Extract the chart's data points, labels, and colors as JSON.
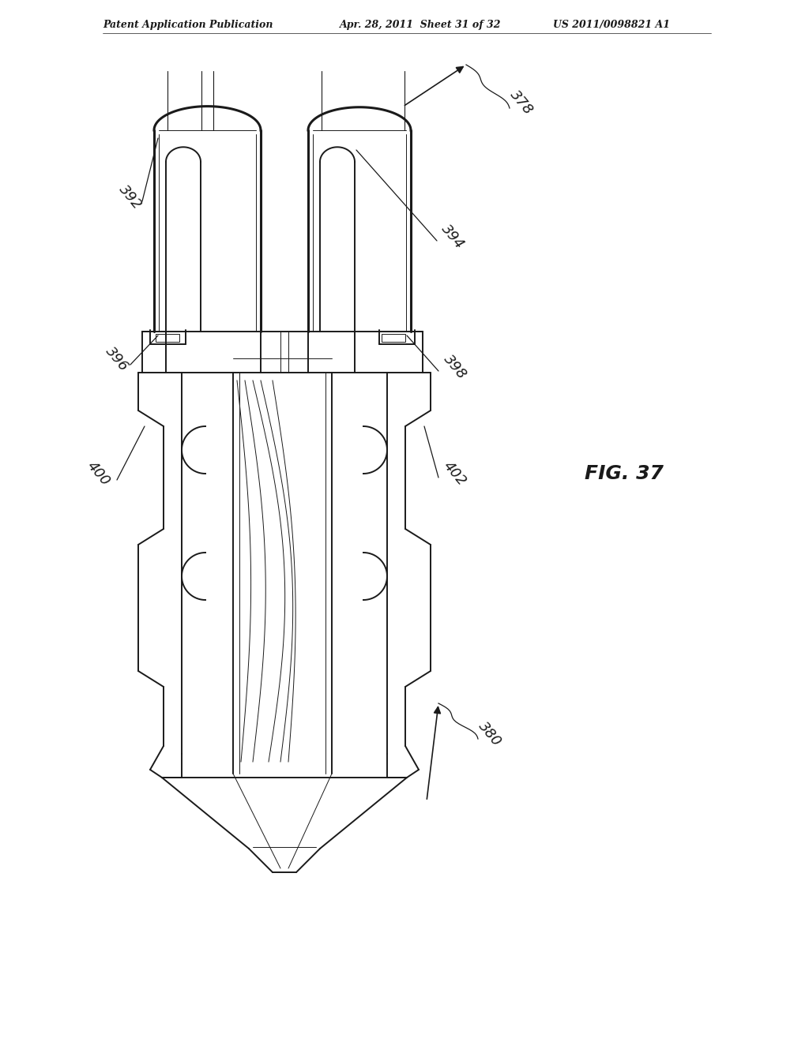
{
  "bg_color": "#ffffff",
  "line_color": "#1a1a1a",
  "header_left": "Patent Application Publication",
  "header_mid": "Apr. 28, 2011  Sheet 31 of 32",
  "header_right": "US 2011/0098821 A1",
  "fig_label": "FIG. 37",
  "labels": [
    "392",
    "394",
    "396",
    "398",
    "400",
    "402",
    "378",
    "380"
  ],
  "lw_main": 1.4,
  "lw_thick": 2.2,
  "lw_thin": 0.7,
  "lw_vt": 0.5
}
